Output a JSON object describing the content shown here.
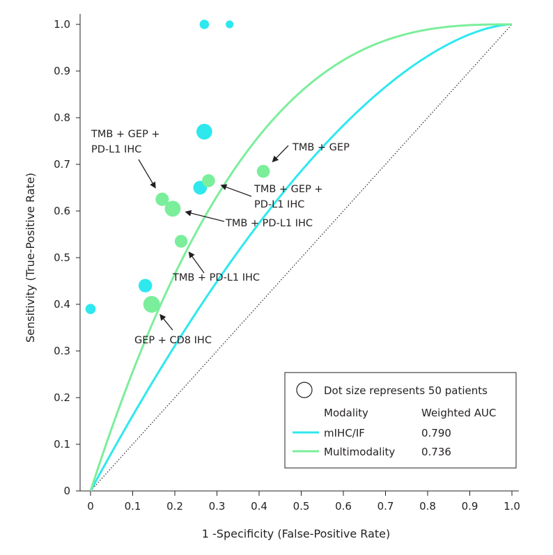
{
  "chart_data": {
    "type": "scatter",
    "title": "",
    "xlabel": "1 -Specificity (False-Positive Rate)",
    "ylabel": "Sensitivity (True-Positive Rate)",
    "xlim": [
      0,
      1.0
    ],
    "ylim": [
      0,
      1.0
    ],
    "x_ticks": [
      "0",
      "0.1",
      "0.2",
      "0.3",
      "0.4",
      "0.5",
      "0.6",
      "0.7",
      "0.8",
      "0.9",
      "1.0"
    ],
    "y_ticks": [
      "0",
      "0.1",
      "0.2",
      "0.3",
      "0.4",
      "0.5",
      "0.6",
      "0.7",
      "0.8",
      "0.9",
      "1.0"
    ],
    "grid": false,
    "series": [
      {
        "name": "mIHC/IF",
        "color": "#2ee8ee",
        "auc": "0.790",
        "curve_shape": 1.67,
        "points": [
          {
            "x": 0.0,
            "y": 0.39,
            "patients": 22
          },
          {
            "x": 0.27,
            "y": 1.0,
            "patients": 19
          },
          {
            "x": 0.33,
            "y": 1.0,
            "patients": 13
          },
          {
            "x": 0.27,
            "y": 0.77,
            "patients": 53
          },
          {
            "x": 0.26,
            "y": 0.65,
            "patients": 40
          },
          {
            "x": 0.13,
            "y": 0.44,
            "patients": 39
          }
        ]
      },
      {
        "name": "Multimodality",
        "color": "#7bee9b",
        "auc": "0.736",
        "curve_shape": 2.8,
        "points": [
          {
            "x": 0.17,
            "y": 0.625,
            "patients": 38
          },
          {
            "x": 0.195,
            "y": 0.605,
            "patients": 54
          },
          {
            "x": 0.28,
            "y": 0.665,
            "patients": 36
          },
          {
            "x": 0.41,
            "y": 0.685,
            "patients": 36
          },
          {
            "x": 0.215,
            "y": 0.535,
            "patients": 35
          },
          {
            "x": 0.145,
            "y": 0.4,
            "patients": 60
          }
        ]
      }
    ],
    "annotations": [
      {
        "lines": [
          "TMB + GEP +",
          "PD-L1 IHC"
        ],
        "target": {
          "x": 0.17,
          "y": 0.625
        }
      },
      {
        "lines": [
          "TMB + GEP"
        ],
        "target": {
          "x": 0.41,
          "y": 0.685
        }
      },
      {
        "lines": [
          "TMB + GEP +",
          "PD-L1 IHC"
        ],
        "target": {
          "x": 0.28,
          "y": 0.665
        }
      },
      {
        "lines": [
          "TMB + PD-L1 IHC"
        ],
        "target": {
          "x": 0.195,
          "y": 0.605
        }
      },
      {
        "lines": [
          "TMB + PD-L1 IHC"
        ],
        "target": {
          "x": 0.215,
          "y": 0.535
        }
      },
      {
        "lines": [
          "GEP + CD8 IHC"
        ],
        "target": {
          "x": 0.145,
          "y": 0.4
        }
      }
    ],
    "legend": {
      "position": "bottom-right",
      "dot_note": "Dot size represents 50 patients",
      "col_modality": "Modality",
      "col_auc": "Weighted AUC"
    }
  }
}
